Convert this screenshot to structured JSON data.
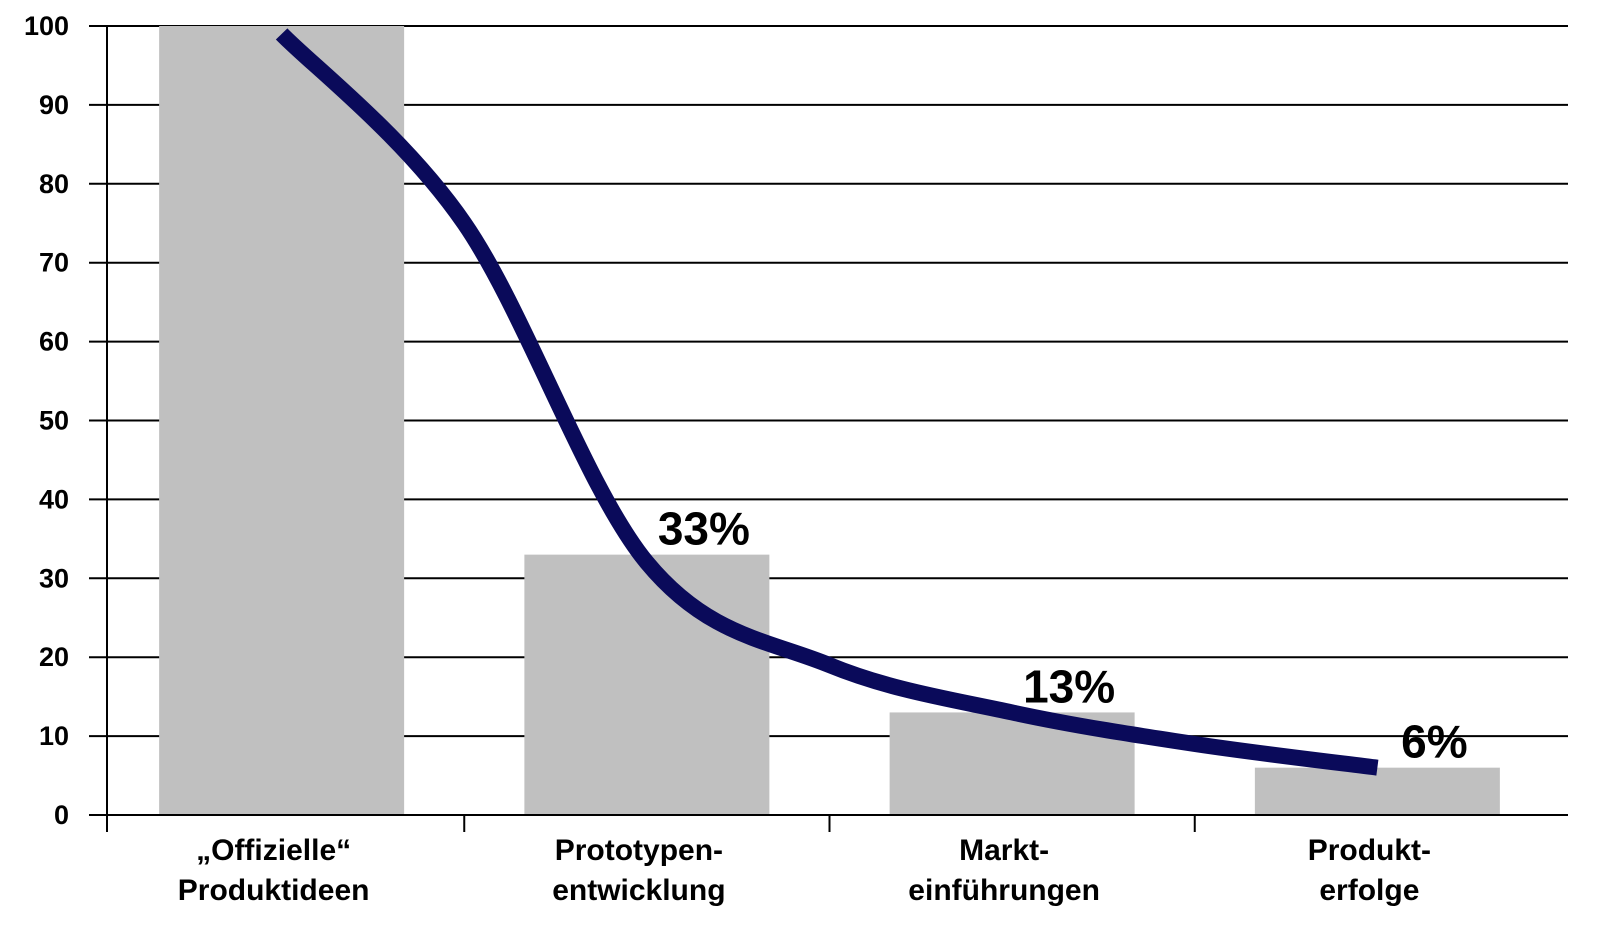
{
  "chart_data": {
    "type": "bar",
    "categories": [
      [
        "„Offizielle“",
        "Produktideen"
      ],
      [
        "Prototypen-",
        "entwicklung"
      ],
      [
        "Markt-",
        "einführungen"
      ],
      [
        "Produkt-",
        "erfolge"
      ]
    ],
    "values": [
      100,
      33,
      13,
      6
    ],
    "data_labels": [
      "",
      "33%",
      "13%",
      "6%"
    ],
    "ylim": [
      0,
      100
    ],
    "yticks": [
      0,
      10,
      20,
      30,
      40,
      50,
      60,
      70,
      80,
      90,
      100
    ],
    "grid": true,
    "bar_color": "#c0c0c0",
    "trend_curve": {
      "color": "#0a0a5a",
      "points": [
        [
          0.0,
          99
        ],
        [
          0.5,
          75
        ],
        [
          1.0,
          32
        ],
        [
          1.5,
          19
        ],
        [
          2.0,
          13
        ],
        [
          2.5,
          9
        ],
        [
          3.0,
          6
        ]
      ]
    }
  }
}
